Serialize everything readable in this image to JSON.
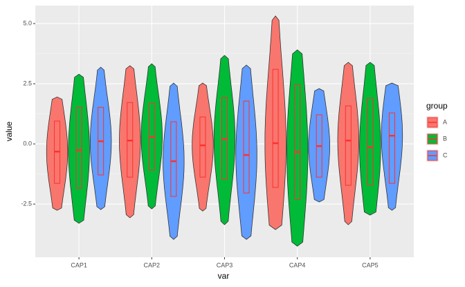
{
  "chart_data": {
    "type": "violin",
    "x_label": "var",
    "y_label": "value",
    "categories": [
      "CAP1",
      "CAP2",
      "CAP3",
      "CAP4",
      "CAP5"
    ],
    "legend_title": "group",
    "legend_position": "right",
    "grid": true,
    "ylim": [
      -4.71,
      5.75
    ],
    "yticks": [
      -2.5,
      {
        "value": 0,
        "label": "0.0"
      },
      2.5,
      {
        "value": 5,
        "label": "5.0"
      }
    ],
    "box_color": "#ff3030",
    "series": [
      {
        "name": "A",
        "color": "#F8766D",
        "values": [
          {
            "min": -2.76,
            "q1": -1.64,
            "median": -0.32,
            "q3": 0.95,
            "max": 1.95
          },
          {
            "min": -3.07,
            "q1": -1.38,
            "median": 0.14,
            "q3": 1.72,
            "max": 3.25
          },
          {
            "min": -2.79,
            "q1": -1.38,
            "median": -0.06,
            "q3": 1.12,
            "max": 2.53
          },
          {
            "min": -3.56,
            "q1": -1.81,
            "median": 0.03,
            "q3": 3.1,
            "max": 5.32
          },
          {
            "min": -3.36,
            "q1": -1.72,
            "median": 0.14,
            "q3": 1.58,
            "max": 3.39
          }
        ]
      },
      {
        "name": "B",
        "color": "#00BA38",
        "values": [
          {
            "min": -3.3,
            "q1": -1.84,
            "median": -0.26,
            "q3": 1.52,
            "max": 2.9
          },
          {
            "min": -2.7,
            "q1": -1.09,
            "median": 0.29,
            "q3": 1.7,
            "max": 3.33
          },
          {
            "min": -3.36,
            "q1": -1.47,
            "median": 0.2,
            "q3": 1.93,
            "max": 3.68
          },
          {
            "min": -4.25,
            "q1": -2.3,
            "median": -0.34,
            "q3": 2.47,
            "max": 3.91
          },
          {
            "min": -2.96,
            "q1": -1.72,
            "median": -0.14,
            "q3": 1.9,
            "max": 3.39
          }
        ]
      },
      {
        "name": "C",
        "color": "#619CFF",
        "values": [
          {
            "min": -2.73,
            "q1": -1.29,
            "median": 0.11,
            "q3": 1.52,
            "max": 3.19
          },
          {
            "min": -3.97,
            "q1": -2.18,
            "median": -0.72,
            "q3": 0.92,
            "max": 2.53
          },
          {
            "min": -3.97,
            "q1": -2.04,
            "median": -0.46,
            "q3": 1.78,
            "max": 3.28
          },
          {
            "min": -2.41,
            "q1": -1.38,
            "median": -0.09,
            "q3": 1.21,
            "max": 2.3
          },
          {
            "min": -2.76,
            "q1": -1.64,
            "median": 0.34,
            "q3": 1.29,
            "max": 2.53
          }
        ]
      }
    ]
  }
}
